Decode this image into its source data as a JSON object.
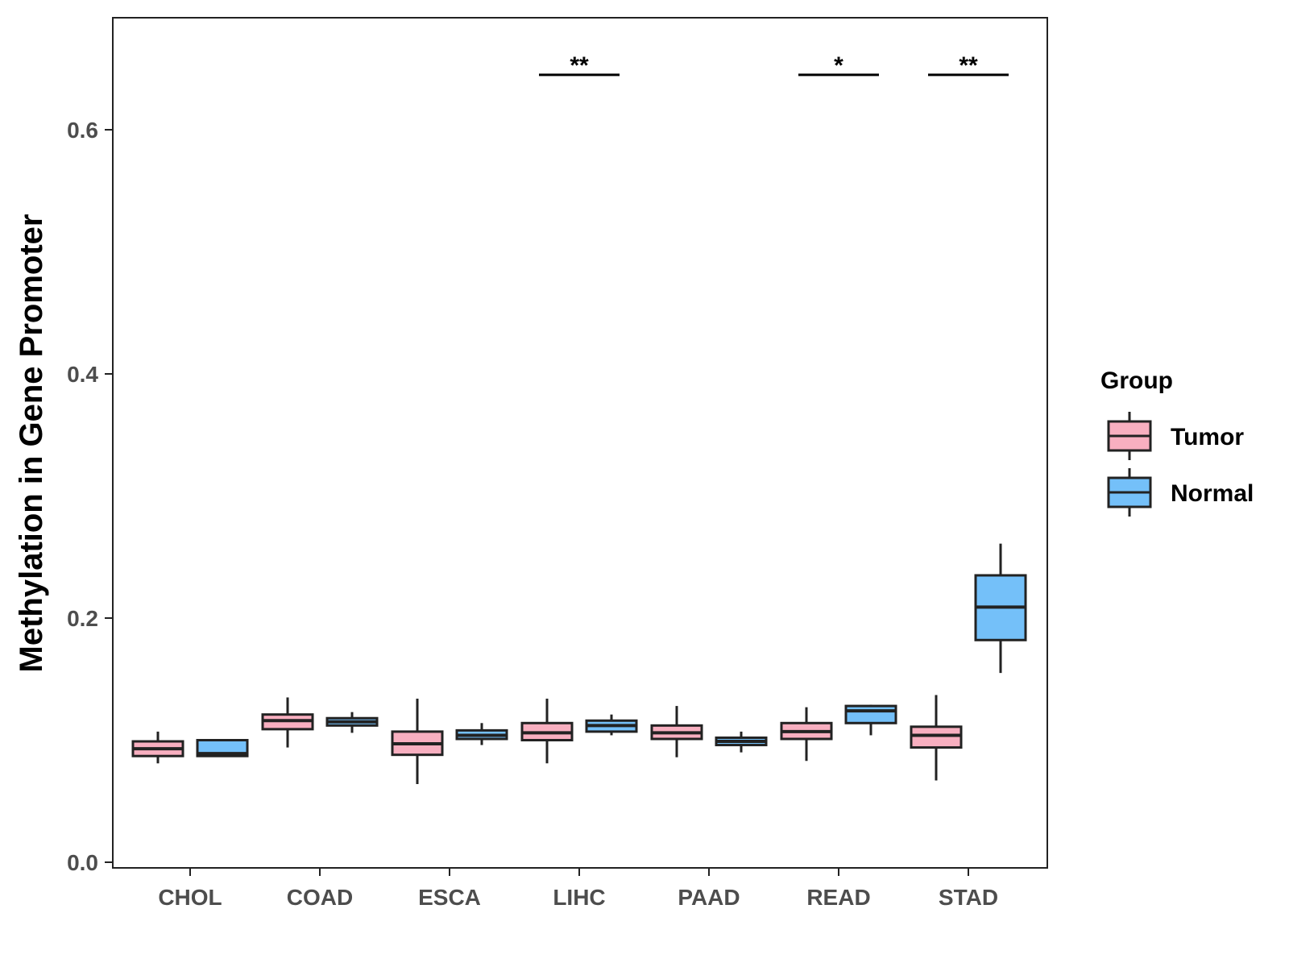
{
  "chart_data": {
    "type": "box",
    "title": "",
    "xlabel": "",
    "ylabel": "Methylation in Gene Promoter",
    "ylim": [
      0,
      0.68
    ],
    "yticks": [
      0.0,
      0.2,
      0.4,
      0.6
    ],
    "ytick_labels": [
      "0.0",
      "0.2",
      "0.4",
      "0.6"
    ],
    "categories": [
      "CHOL",
      "COAD",
      "ESCA",
      "LIHC",
      "PAAD",
      "READ",
      "STAD"
    ],
    "grid": false,
    "legend": {
      "title": "Group",
      "position": "right"
    },
    "series": [
      {
        "name": "Tumor",
        "color": "#F8AFC0",
        "boxes": [
          {
            "category": "CHOL",
            "min": 0.081,
            "q1": 0.087,
            "median": 0.093,
            "q3": 0.099,
            "max": 0.107
          },
          {
            "category": "COAD",
            "min": 0.094,
            "q1": 0.109,
            "median": 0.116,
            "q3": 0.121,
            "max": 0.135
          },
          {
            "category": "ESCA",
            "min": 0.064,
            "q1": 0.088,
            "median": 0.097,
            "q3": 0.107,
            "max": 0.134
          },
          {
            "category": "LIHC",
            "min": 0.081,
            "q1": 0.1,
            "median": 0.106,
            "q3": 0.114,
            "max": 0.134
          },
          {
            "category": "PAAD",
            "min": 0.086,
            "q1": 0.101,
            "median": 0.106,
            "q3": 0.112,
            "max": 0.128
          },
          {
            "category": "READ",
            "min": 0.083,
            "q1": 0.101,
            "median": 0.107,
            "q3": 0.114,
            "max": 0.127
          },
          {
            "category": "STAD",
            "min": 0.067,
            "q1": 0.094,
            "median": 0.104,
            "q3": 0.111,
            "max": 0.137
          }
        ]
      },
      {
        "name": "Normal",
        "color": "#74C0F9",
        "boxes": [
          {
            "category": "CHOL",
            "min": 0.087,
            "q1": 0.087,
            "median": 0.089,
            "q3": 0.1,
            "max": 0.101
          },
          {
            "category": "COAD",
            "min": 0.106,
            "q1": 0.112,
            "median": 0.115,
            "q3": 0.118,
            "max": 0.123
          },
          {
            "category": "ESCA",
            "min": 0.096,
            "q1": 0.101,
            "median": 0.104,
            "q3": 0.108,
            "max": 0.114
          },
          {
            "category": "LIHC",
            "min": 0.104,
            "q1": 0.107,
            "median": 0.112,
            "q3": 0.116,
            "max": 0.121
          },
          {
            "category": "PAAD",
            "min": 0.09,
            "q1": 0.096,
            "median": 0.099,
            "q3": 0.102,
            "max": 0.107
          },
          {
            "category": "READ",
            "min": 0.104,
            "q1": 0.114,
            "median": 0.124,
            "q3": 0.128,
            "max": 0.129
          },
          {
            "category": "STAD",
            "min": 0.155,
            "q1": 0.182,
            "median": 0.209,
            "q3": 0.235,
            "max": 0.261
          }
        ]
      }
    ],
    "annotations": [
      {
        "category": "LIHC",
        "label": "**",
        "y": 0.645
      },
      {
        "category": "READ",
        "label": "*",
        "y": 0.645
      },
      {
        "category": "STAD",
        "label": "**",
        "y": 0.645
      }
    ]
  },
  "colors": {
    "tumor": "#F8AFC0",
    "normal": "#74C0F9",
    "outline": "#222222",
    "axis_text": "#4d4d4d"
  }
}
